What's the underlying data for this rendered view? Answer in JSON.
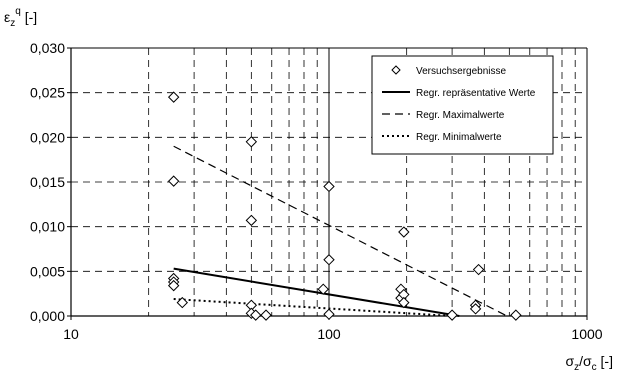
{
  "chart_data": {
    "type": "scatter",
    "title": "",
    "ylabel": {
      "base": "ε",
      "sub": "z",
      "sup": "q",
      "unit": " [-]"
    },
    "xlabel": {
      "num": "σ",
      "num_sub": "z",
      "sep": "/",
      "den": "σ",
      "den_sub": "c",
      "unit": " [-]"
    },
    "x_scale": "log",
    "xlim": [
      10,
      1000
    ],
    "ylim": [
      0,
      0.03
    ],
    "x_ticks": [
      {
        "value": 10,
        "label": "10"
      },
      {
        "value": 100,
        "label": "100"
      },
      {
        "value": 1000,
        "label": "1000"
      }
    ],
    "y_ticks": [
      {
        "value": 0,
        "label": "0,000"
      },
      {
        "value": 0.005,
        "label": "0,005"
      },
      {
        "value": 0.01,
        "label": "0,010"
      },
      {
        "value": 0.015,
        "label": "0,015"
      },
      {
        "value": 0.02,
        "label": "0,020"
      },
      {
        "value": 0.025,
        "label": "0,025"
      },
      {
        "value": 0.03,
        "label": "0,030"
      }
    ],
    "grid": true,
    "legend_position": "top-right",
    "series": [
      {
        "name": "Versuchsergebnisse",
        "kind": "points",
        "marker": "diamond",
        "x": [
          25,
          25,
          25,
          25,
          25,
          27,
          50,
          50,
          50,
          50,
          52,
          57,
          95,
          100,
          100,
          100,
          190,
          190,
          195,
          195,
          195,
          300,
          370,
          370,
          380,
          530
        ],
        "y": [
          0.0245,
          0.0151,
          0.0042,
          0.0038,
          0.0034,
          0.0015,
          0.0195,
          0.0107,
          0.0012,
          0.0003,
          0.0001,
          0.0001,
          0.003,
          0.0145,
          0.0063,
          0.0002,
          0.003,
          0.002,
          0.0094,
          0.0024,
          0.0015,
          0.0001,
          0.0012,
          0.0008,
          0.0052,
          0.0001
        ]
      },
      {
        "name": "Regr. repräsentative Werte",
        "kind": "line",
        "dash": "solid",
        "x": [
          25,
          320
        ],
        "y": [
          0.0053,
          0.0
        ]
      },
      {
        "name": "Regr. Maximalwerte",
        "kind": "line",
        "dash": "dashed",
        "x": [
          25,
          490
        ],
        "y": [
          0.019,
          0.0
        ]
      },
      {
        "name": "Regr. Minimalwerte",
        "kind": "line",
        "dash": "dotted",
        "x": [
          25,
          300
        ],
        "y": [
          0.0019,
          0.0
        ]
      }
    ]
  }
}
